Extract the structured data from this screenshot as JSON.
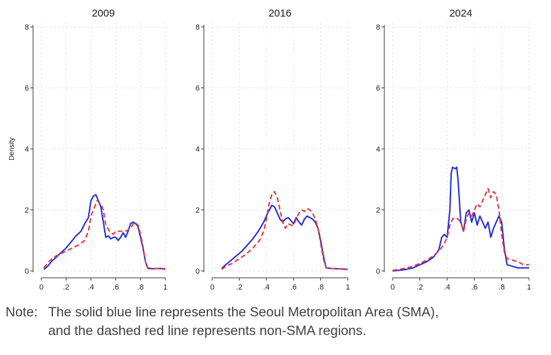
{
  "chart_data": [
    {
      "type": "line",
      "title": "2009",
      "ylabel": "Density",
      "xlim": [
        0,
        1
      ],
      "ylim": [
        0,
        8
      ],
      "x_ticks": [
        "0",
        ".2",
        ".4",
        ".6",
        ".8",
        "1"
      ],
      "y_ticks": [
        "0",
        "2",
        "4",
        "6",
        "8"
      ],
      "grid": "dashed vertical and horizontal",
      "series": [
        {
          "color": "#1f2bd9",
          "style": "solid",
          "points": [
            [
              0.02,
              0.05
            ],
            [
              0.05,
              0.15
            ],
            [
              0.08,
              0.3
            ],
            [
              0.12,
              0.45
            ],
            [
              0.16,
              0.6
            ],
            [
              0.2,
              0.75
            ],
            [
              0.24,
              0.95
            ],
            [
              0.28,
              1.15
            ],
            [
              0.32,
              1.3
            ],
            [
              0.35,
              1.55
            ],
            [
              0.38,
              1.75
            ],
            [
              0.4,
              2.3
            ],
            [
              0.42,
              2.45
            ],
            [
              0.44,
              2.5
            ],
            [
              0.46,
              2.3
            ],
            [
              0.48,
              2.1
            ],
            [
              0.5,
              1.6
            ],
            [
              0.52,
              1.1
            ],
            [
              0.54,
              1.15
            ],
            [
              0.56,
              1.05
            ],
            [
              0.58,
              1.1
            ],
            [
              0.6,
              1.1
            ],
            [
              0.62,
              1.0
            ],
            [
              0.64,
              1.1
            ],
            [
              0.66,
              1.25
            ],
            [
              0.68,
              1.1
            ],
            [
              0.7,
              1.3
            ],
            [
              0.72,
              1.55
            ],
            [
              0.74,
              1.6
            ],
            [
              0.76,
              1.55
            ],
            [
              0.78,
              1.45
            ],
            [
              0.8,
              1.1
            ],
            [
              0.82,
              0.75
            ],
            [
              0.84,
              0.3
            ],
            [
              0.86,
              0.08
            ],
            [
              0.9,
              0.07
            ],
            [
              0.95,
              0.08
            ],
            [
              1.0,
              0.07
            ]
          ]
        },
        {
          "color": "#e8333a",
          "style": "dashed",
          "points": [
            [
              0.02,
              0.1
            ],
            [
              0.06,
              0.3
            ],
            [
              0.1,
              0.45
            ],
            [
              0.15,
              0.55
            ],
            [
              0.2,
              0.65
            ],
            [
              0.25,
              0.75
            ],
            [
              0.3,
              0.85
            ],
            [
              0.35,
              1.0
            ],
            [
              0.38,
              1.3
            ],
            [
              0.4,
              1.8
            ],
            [
              0.42,
              2.0
            ],
            [
              0.45,
              2.3
            ],
            [
              0.48,
              2.2
            ],
            [
              0.5,
              2.0
            ],
            [
              0.52,
              1.5
            ],
            [
              0.55,
              1.3
            ],
            [
              0.58,
              1.2
            ],
            [
              0.6,
              1.3
            ],
            [
              0.64,
              1.3
            ],
            [
              0.68,
              1.3
            ],
            [
              0.7,
              1.35
            ],
            [
              0.72,
              1.4
            ],
            [
              0.75,
              1.6
            ],
            [
              0.78,
              1.5
            ],
            [
              0.8,
              1.2
            ],
            [
              0.82,
              0.8
            ],
            [
              0.84,
              0.3
            ],
            [
              0.86,
              0.1
            ],
            [
              0.9,
              0.08
            ],
            [
              0.95,
              0.08
            ],
            [
              1.0,
              0.05
            ]
          ]
        }
      ]
    },
    {
      "type": "line",
      "title": "2016",
      "xlim": [
        0,
        1
      ],
      "ylim": [
        0,
        8
      ],
      "x_ticks": [
        "0",
        ".2",
        ".4",
        ".6",
        ".8",
        "1"
      ],
      "y_ticks": [
        "0",
        "2",
        "4",
        "6",
        "8"
      ],
      "grid": "dashed vertical and horizontal",
      "series": [
        {
          "color": "#1f2bd9",
          "style": "solid",
          "points": [
            [
              0.07,
              0.08
            ],
            [
              0.1,
              0.2
            ],
            [
              0.14,
              0.35
            ],
            [
              0.18,
              0.5
            ],
            [
              0.22,
              0.65
            ],
            [
              0.26,
              0.85
            ],
            [
              0.3,
              1.05
            ],
            [
              0.34,
              1.3
            ],
            [
              0.38,
              1.6
            ],
            [
              0.41,
              1.9
            ],
            [
              0.44,
              2.15
            ],
            [
              0.46,
              2.1
            ],
            [
              0.48,
              1.9
            ],
            [
              0.5,
              1.7
            ],
            [
              0.52,
              1.6
            ],
            [
              0.54,
              1.7
            ],
            [
              0.56,
              1.75
            ],
            [
              0.58,
              1.65
            ],
            [
              0.6,
              1.55
            ],
            [
              0.62,
              1.75
            ],
            [
              0.64,
              1.6
            ],
            [
              0.66,
              1.5
            ],
            [
              0.68,
              1.7
            ],
            [
              0.7,
              1.8
            ],
            [
              0.72,
              1.75
            ],
            [
              0.74,
              1.7
            ],
            [
              0.76,
              1.6
            ],
            [
              0.78,
              1.4
            ],
            [
              0.8,
              1.0
            ],
            [
              0.82,
              0.5
            ],
            [
              0.84,
              0.1
            ],
            [
              0.88,
              0.08
            ],
            [
              0.92,
              0.07
            ],
            [
              0.96,
              0.06
            ],
            [
              1.0,
              0.05
            ]
          ]
        },
        {
          "color": "#e8333a",
          "style": "dashed",
          "points": [
            [
              0.07,
              0.05
            ],
            [
              0.1,
              0.15
            ],
            [
              0.15,
              0.25
            ],
            [
              0.2,
              0.4
            ],
            [
              0.25,
              0.55
            ],
            [
              0.3,
              0.75
            ],
            [
              0.35,
              1.0
            ],
            [
              0.38,
              1.3
            ],
            [
              0.4,
              1.7
            ],
            [
              0.42,
              2.2
            ],
            [
              0.44,
              2.5
            ],
            [
              0.46,
              2.6
            ],
            [
              0.48,
              2.4
            ],
            [
              0.5,
              2.0
            ],
            [
              0.52,
              1.6
            ],
            [
              0.54,
              1.4
            ],
            [
              0.56,
              1.55
            ],
            [
              0.58,
              1.5
            ],
            [
              0.6,
              1.5
            ],
            [
              0.62,
              1.7
            ],
            [
              0.64,
              1.9
            ],
            [
              0.66,
              2.0
            ],
            [
              0.68,
              1.95
            ],
            [
              0.7,
              2.05
            ],
            [
              0.72,
              2.0
            ],
            [
              0.74,
              1.9
            ],
            [
              0.76,
              1.7
            ],
            [
              0.78,
              1.4
            ],
            [
              0.8,
              0.9
            ],
            [
              0.82,
              0.4
            ],
            [
              0.84,
              0.1
            ],
            [
              0.88,
              0.08
            ],
            [
              0.94,
              0.07
            ],
            [
              1.0,
              0.05
            ]
          ]
        }
      ]
    },
    {
      "type": "line",
      "title": "2024",
      "xlim": [
        0,
        1
      ],
      "ylim": [
        0,
        8
      ],
      "x_ticks": [
        "0",
        ".2",
        ".4",
        ".6",
        ".8",
        "1"
      ],
      "y_ticks": [
        "0",
        "2",
        "4",
        "6",
        "8"
      ],
      "grid": "dashed vertical and horizontal",
      "series": [
        {
          "color": "#1f2bd9",
          "style": "solid",
          "points": [
            [
              0.0,
              0.0
            ],
            [
              0.05,
              0.02
            ],
            [
              0.1,
              0.05
            ],
            [
              0.15,
              0.1
            ],
            [
              0.2,
              0.2
            ],
            [
              0.25,
              0.3
            ],
            [
              0.3,
              0.45
            ],
            [
              0.34,
              0.7
            ],
            [
              0.36,
              1.1
            ],
            [
              0.38,
              1.2
            ],
            [
              0.4,
              1.1
            ],
            [
              0.42,
              2.0
            ],
            [
              0.43,
              3.2
            ],
            [
              0.44,
              3.4
            ],
            [
              0.46,
              3.35
            ],
            [
              0.47,
              3.4
            ],
            [
              0.48,
              3.0
            ],
            [
              0.5,
              1.6
            ],
            [
              0.52,
              1.3
            ],
            [
              0.54,
              1.9
            ],
            [
              0.56,
              2.0
            ],
            [
              0.58,
              1.6
            ],
            [
              0.6,
              1.9
            ],
            [
              0.62,
              1.5
            ],
            [
              0.64,
              1.8
            ],
            [
              0.66,
              1.6
            ],
            [
              0.68,
              1.4
            ],
            [
              0.7,
              1.6
            ],
            [
              0.72,
              1.1
            ],
            [
              0.74,
              1.4
            ],
            [
              0.76,
              1.6
            ],
            [
              0.78,
              1.8
            ],
            [
              0.8,
              1.6
            ],
            [
              0.82,
              0.7
            ],
            [
              0.84,
              0.2
            ],
            [
              0.88,
              0.15
            ],
            [
              0.92,
              0.1
            ],
            [
              0.96,
              0.1
            ],
            [
              1.0,
              0.1
            ]
          ]
        },
        {
          "color": "#e8333a",
          "style": "dashed",
          "points": [
            [
              0.0,
              0.02
            ],
            [
              0.05,
              0.05
            ],
            [
              0.1,
              0.1
            ],
            [
              0.15,
              0.15
            ],
            [
              0.2,
              0.25
            ],
            [
              0.25,
              0.35
            ],
            [
              0.3,
              0.5
            ],
            [
              0.35,
              0.7
            ],
            [
              0.38,
              0.9
            ],
            [
              0.4,
              1.1
            ],
            [
              0.42,
              1.5
            ],
            [
              0.44,
              1.7
            ],
            [
              0.46,
              1.75
            ],
            [
              0.48,
              1.7
            ],
            [
              0.5,
              1.6
            ],
            [
              0.52,
              1.3
            ],
            [
              0.54,
              1.7
            ],
            [
              0.56,
              1.9
            ],
            [
              0.58,
              1.8
            ],
            [
              0.6,
              2.0
            ],
            [
              0.62,
              2.2
            ],
            [
              0.64,
              2.1
            ],
            [
              0.66,
              2.3
            ],
            [
              0.68,
              2.5
            ],
            [
              0.7,
              2.7
            ],
            [
              0.72,
              2.4
            ],
            [
              0.74,
              2.6
            ],
            [
              0.76,
              2.5
            ],
            [
              0.78,
              2.0
            ],
            [
              0.8,
              1.2
            ],
            [
              0.82,
              0.6
            ],
            [
              0.84,
              0.4
            ],
            [
              0.88,
              0.35
            ],
            [
              0.92,
              0.3
            ],
            [
              0.96,
              0.2
            ],
            [
              1.0,
              0.2
            ]
          ]
        }
      ]
    }
  ],
  "note": {
    "lead": "Note:",
    "line1": "The solid blue line represents the Seoul Metropolitan Area (SMA),",
    "line2": "and the dashed red line represents non-SMA regions."
  }
}
